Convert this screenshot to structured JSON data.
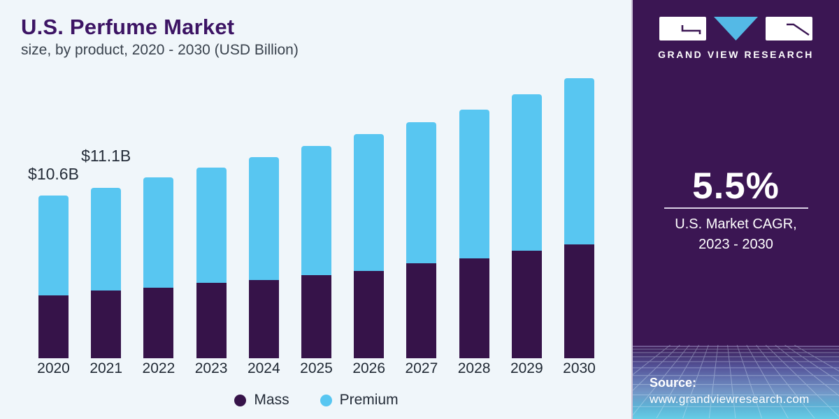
{
  "header": {
    "title": "U.S. Perfume Market",
    "subtitle": "size, by product, 2020 - 2030 (USD Billion)"
  },
  "chart_data": {
    "type": "bar",
    "stacked": true,
    "title": "U.S. Perfume Market size, by product, 2020 - 2030 (USD Billion)",
    "unit": "USD Billion",
    "categories": [
      "2020",
      "2021",
      "2022",
      "2023",
      "2024",
      "2025",
      "2026",
      "2027",
      "2028",
      "2029",
      "2030"
    ],
    "series": [
      {
        "name": "Mass",
        "color": "#361349",
        "values": [
          4.1,
          4.4,
          4.6,
          4.9,
          5.1,
          5.4,
          5.7,
          6.2,
          6.5,
          7.0,
          7.4
        ]
      },
      {
        "name": "Premium",
        "color": "#58c6f1",
        "values": [
          6.5,
          6.7,
          7.2,
          7.5,
          8.0,
          8.4,
          8.9,
          9.2,
          9.7,
          10.2,
          10.8
        ]
      }
    ],
    "totals": [
      10.6,
      11.1,
      11.8,
      12.4,
      13.1,
      13.8,
      14.6,
      15.4,
      16.2,
      17.2,
      18.2
    ],
    "annotations": [
      {
        "category": "2020",
        "text": "$10.6B"
      },
      {
        "category": "2021",
        "text": "$11.1B"
      }
    ],
    "ylim": [
      0,
      18.6
    ],
    "grid": false,
    "legend_position": "bottom"
  },
  "sidebar": {
    "brand": "GRAND VIEW RESEARCH",
    "cagr_value": "5.5%",
    "cagr_label_line1": "U.S. Market CAGR,",
    "cagr_label_line2": "2023 - 2030",
    "source_label": "Source:",
    "source_url": "www.grandviewresearch.com",
    "colors": {
      "panel": "#3b1653",
      "logo_triangle": "#54b9e6",
      "mesh_line": "#d7e8f7"
    }
  }
}
